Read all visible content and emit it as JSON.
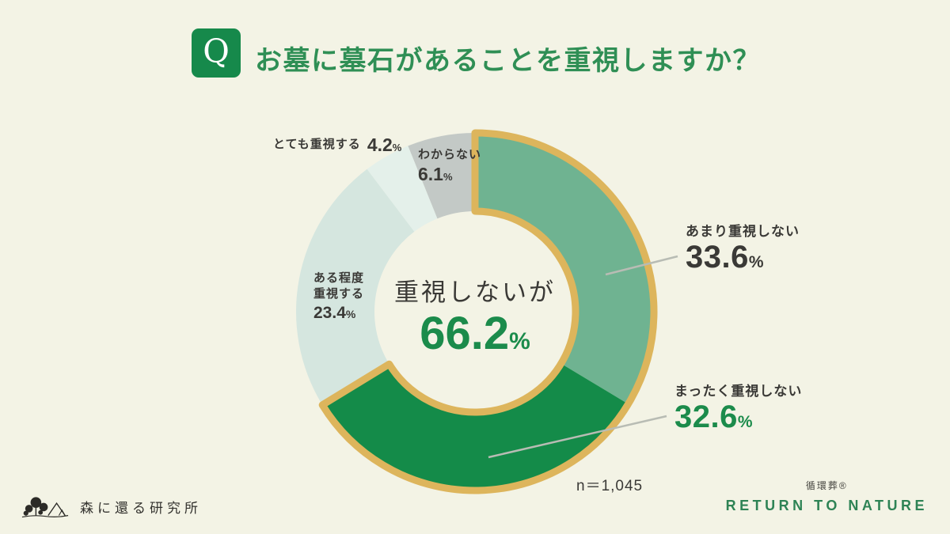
{
  "page": {
    "background": "#f3f3e5"
  },
  "header": {
    "q_label": "Q",
    "title": "お墓に墓石があることを重視しますか？",
    "badge_color": "#16894b",
    "title_color": "#2f8f55"
  },
  "chart_data": {
    "type": "pie",
    "subtype": "donut",
    "title": "お墓に墓石があることを重視しますか？",
    "unit": "%",
    "start_angle_deg": 0,
    "direction": "clockwise",
    "inner_radius_ratio": 0.56,
    "segments": [
      {
        "label": "あまり重視しない",
        "value": 33.6,
        "color": "#6fb391"
      },
      {
        "label": "まったく重視しない",
        "value": 32.6,
        "color": "#148b49"
      },
      {
        "label": "ある程度重視する",
        "value": 23.4,
        "color": "#d5e6df"
      },
      {
        "label": "とても重視する",
        "value": 4.2,
        "color": "#e4f0ea"
      },
      {
        "label": "わからない",
        "value": 6.1,
        "color": "#c3c9c6"
      }
    ],
    "highlight": {
      "label": "重視しないが",
      "value": 66.2,
      "covers_segments": [
        "あまり重視しない",
        "まったく重視しない"
      ],
      "outline_color": "#ddb55c"
    },
    "sample_size_label": "n＝1,045"
  },
  "callouts": {
    "totemo": {
      "label": "とても重視する",
      "value": "4.2",
      "unit": "%"
    },
    "wakaranai": {
      "label": "わからない",
      "value": "6.1",
      "unit": "%"
    },
    "aruteido": {
      "label_line1": "ある程度",
      "label_line2": "重視する",
      "value": "23.4",
      "unit": "%"
    },
    "amari": {
      "label": "あまり重視しない",
      "value": "33.6",
      "unit": "%"
    },
    "mattaku": {
      "label": "まったく重視しない",
      "value": "32.6",
      "unit": "%"
    },
    "center": {
      "label": "重視しないが",
      "value": "66.2",
      "unit": "%"
    }
  },
  "footnote": {
    "sample_size": "n＝1,045"
  },
  "footer": {
    "left_org": "森に還る研究所",
    "right_brand_ja": "循環葬®",
    "right_brand_en": "RETURN TO NATURE",
    "brand_color": "#2e8355"
  }
}
